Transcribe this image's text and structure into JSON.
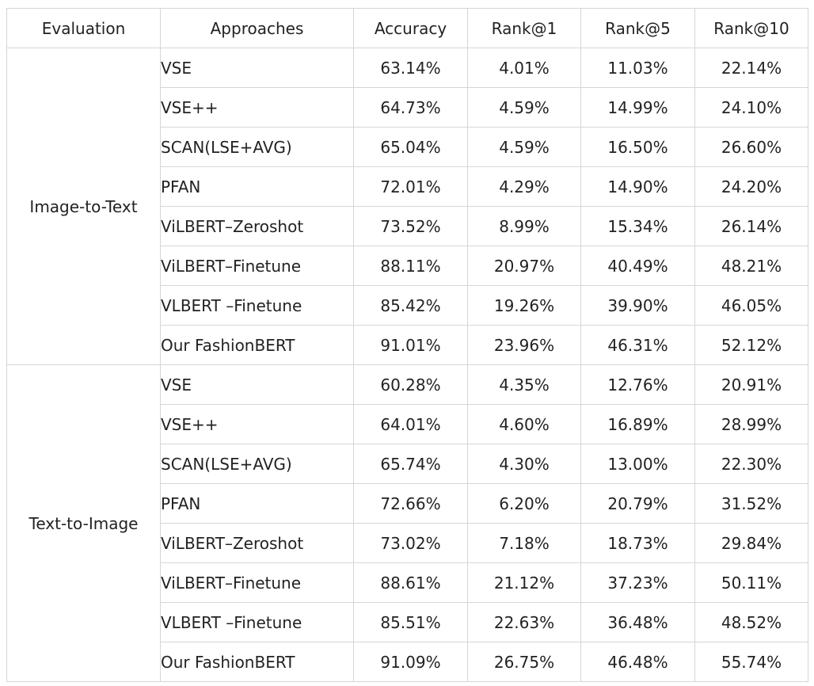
{
  "headers": {
    "evaluation": "Evaluation",
    "approaches": "Approaches",
    "accuracy": "Accuracy",
    "rank1": "Rank@1",
    "rank5": "Rank@5",
    "rank10": "Rank@10"
  },
  "groups": [
    {
      "name": "Image-to-Text",
      "rows": [
        {
          "approach": "VSE",
          "accuracy": "63.14%",
          "rank1": "4.01%",
          "rank5": "11.03%",
          "rank10": "22.14%"
        },
        {
          "approach": "VSE++",
          "accuracy": "64.73%",
          "rank1": "4.59%",
          "rank5": "14.99%",
          "rank10": "24.10%"
        },
        {
          "approach": "SCAN(LSE+AVG)",
          "accuracy": "65.04%",
          "rank1": "4.59%",
          "rank5": "16.50%",
          "rank10": "26.60%"
        },
        {
          "approach": "PFAN",
          "accuracy": "72.01%",
          "rank1": "4.29%",
          "rank5": "14.90%",
          "rank10": "24.20%"
        },
        {
          "approach": "ViLBERT–Zeroshot",
          "accuracy": "73.52%",
          "rank1": "8.99%",
          "rank5": "15.34%",
          "rank10": "26.14%"
        },
        {
          "approach": "ViLBERT–Finetune",
          "accuracy": "88.11%",
          "rank1": "20.97%",
          "rank5": "40.49%",
          "rank10": "48.21%"
        },
        {
          "approach": "VLBERT  –Finetune",
          "accuracy": "85.42%",
          "rank1": "19.26%",
          "rank5": "39.90%",
          "rank10": "46.05%"
        },
        {
          "approach": "Our FashionBERT",
          "accuracy": "91.01%",
          "rank1": "23.96%",
          "rank5": "46.31%",
          "rank10": "52.12%",
          "bold": true
        }
      ]
    },
    {
      "name": "Text-to-Image",
      "rows": [
        {
          "approach": "VSE",
          "accuracy": "60.28%",
          "rank1": "4.35%",
          "rank5": "12.76%",
          "rank10": "20.91%"
        },
        {
          "approach": "VSE++",
          "accuracy": "64.01%",
          "rank1": "4.60%",
          "rank5": "16.89%",
          "rank10": "28.99%"
        },
        {
          "approach": "SCAN(LSE+AVG)",
          "accuracy": "65.74%",
          "rank1": "4.30%",
          "rank5": "13.00%",
          "rank10": "22.30%"
        },
        {
          "approach": "PFAN",
          "accuracy": "72.66%",
          "rank1": "6.20%",
          "rank5": "20.79%",
          "rank10": "31.52%"
        },
        {
          "approach": "ViLBERT–Zeroshot",
          "accuracy": "73.02%",
          "rank1": "7.18%",
          "rank5": "18.73%",
          "rank10": "29.84%"
        },
        {
          "approach": "ViLBERT–Finetune",
          "accuracy": "88.61%",
          "rank1": "21.12%",
          "rank5": "37.23%",
          "rank10": "50.11%"
        },
        {
          "approach": "VLBERT  –Finetune",
          "accuracy": "85.51%",
          "rank1": "22.63%",
          "rank5": "36.48%",
          "rank10": "48.52%"
        },
        {
          "approach": "Our FashionBERT",
          "accuracy": "91.09%",
          "rank1": "26.75%",
          "rank5": "46.48%",
          "rank10": "55.74%",
          "bold": true
        }
      ]
    }
  ]
}
